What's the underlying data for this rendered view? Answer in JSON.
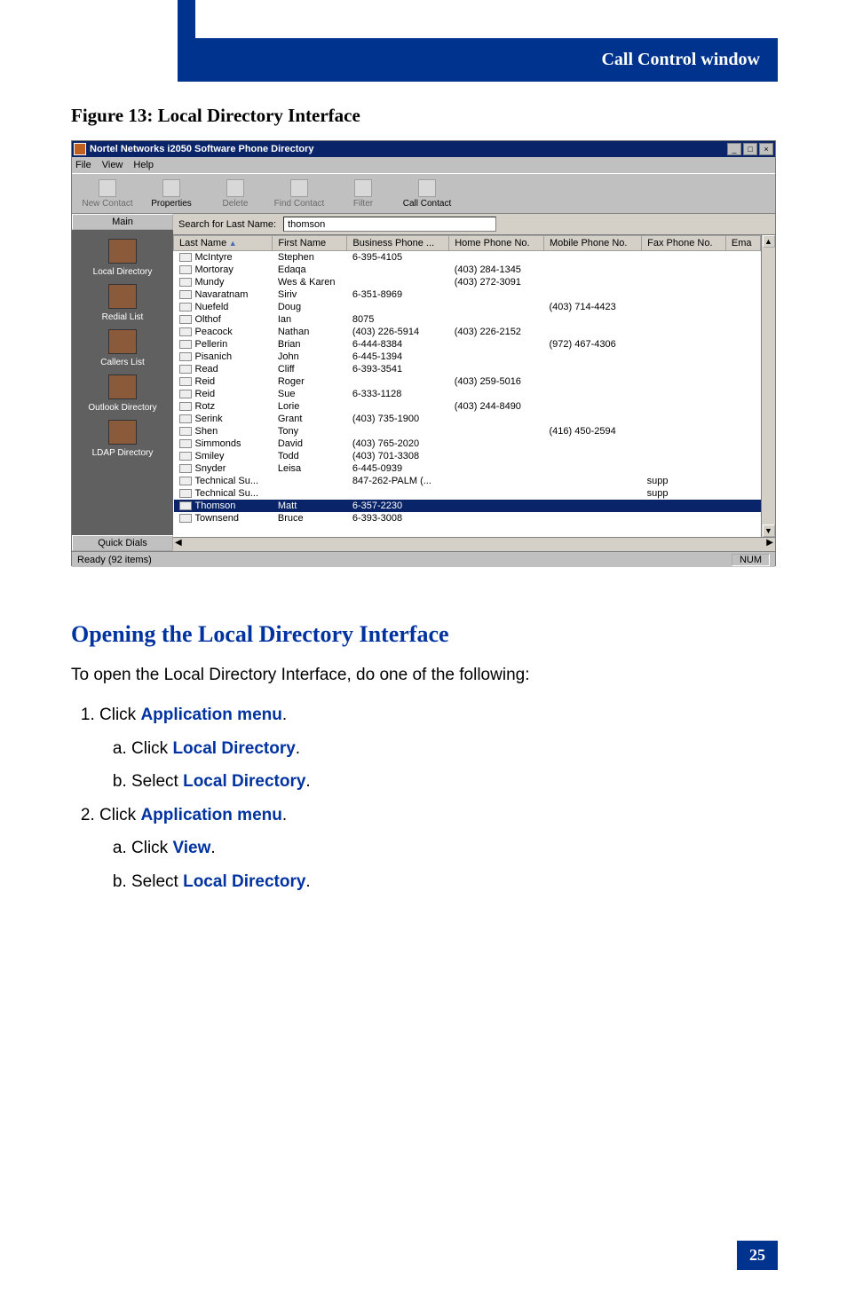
{
  "header": {
    "section_title": "Call Control window"
  },
  "figure": {
    "caption": "Figure 13: Local Directory Interface"
  },
  "window": {
    "title": "Nortel Networks i2050 Software Phone Directory",
    "menus": [
      "File",
      "View",
      "Help"
    ],
    "toolbar": [
      {
        "label": "New Contact",
        "active": false
      },
      {
        "label": "Properties",
        "active": true
      },
      {
        "label": "Delete",
        "active": false
      },
      {
        "label": "Find Contact",
        "active": false
      },
      {
        "label": "Filter",
        "active": false
      },
      {
        "label": "Call Contact",
        "active": true
      }
    ],
    "sidebar_head": "Main",
    "sidebar_items": [
      "Local Directory",
      "Redial List",
      "Callers List",
      "Outlook Directory",
      "LDAP Directory"
    ],
    "sidebar_foot": "Quick Dials",
    "search_label": "Search for Last Name:",
    "search_value": "thomson",
    "columns": [
      "Last Name",
      "First Name",
      "Business Phone ...",
      "Home Phone No.",
      "Mobile Phone No.",
      "Fax Phone No.",
      "Ema"
    ],
    "rows": [
      {
        "last": "McIntyre",
        "first": "Stephen",
        "biz": "6-395-4105",
        "home": "",
        "mob": "",
        "fax": "",
        "sel": false
      },
      {
        "last": "Mortoray",
        "first": "Edaqa",
        "biz": "",
        "home": "(403) 284-1345",
        "mob": "",
        "fax": "",
        "sel": false
      },
      {
        "last": "Mundy",
        "first": "Wes & Karen",
        "biz": "",
        "home": "(403) 272-3091",
        "mob": "",
        "fax": "",
        "sel": false
      },
      {
        "last": "Navaratnam",
        "first": "Siriv",
        "biz": "6-351-8969",
        "home": "",
        "mob": "",
        "fax": "",
        "sel": false
      },
      {
        "last": "Nuefeld",
        "first": "Doug",
        "biz": "",
        "home": "",
        "mob": "(403) 714-4423",
        "fax": "",
        "sel": false
      },
      {
        "last": "Olthof",
        "first": "Ian",
        "biz": "8075",
        "home": "",
        "mob": "",
        "fax": "",
        "sel": false
      },
      {
        "last": "Peacock",
        "first": "Nathan",
        "biz": "(403) 226-5914",
        "home": "(403) 226-2152",
        "mob": "",
        "fax": "",
        "sel": false
      },
      {
        "last": "Pellerin",
        "first": "Brian",
        "biz": "6-444-8384",
        "home": "",
        "mob": "(972) 467-4306",
        "fax": "",
        "sel": false
      },
      {
        "last": "Pisanich",
        "first": "John",
        "biz": "6-445-1394",
        "home": "",
        "mob": "",
        "fax": "",
        "sel": false
      },
      {
        "last": "Read",
        "first": "Cliff",
        "biz": "6-393-3541",
        "home": "",
        "mob": "",
        "fax": "",
        "sel": false
      },
      {
        "last": "Reid",
        "first": "Roger",
        "biz": "",
        "home": "(403) 259-5016",
        "mob": "",
        "fax": "",
        "sel": false
      },
      {
        "last": "Reid",
        "first": "Sue",
        "biz": "6-333-1128",
        "home": "",
        "mob": "",
        "fax": "",
        "sel": false
      },
      {
        "last": "Rotz",
        "first": "Lorie",
        "biz": "",
        "home": "(403) 244-8490",
        "mob": "",
        "fax": "",
        "sel": false
      },
      {
        "last": "Serink",
        "first": "Grant",
        "biz": "(403) 735-1900",
        "home": "",
        "mob": "",
        "fax": "",
        "sel": false
      },
      {
        "last": "Shen",
        "first": "Tony",
        "biz": "",
        "home": "",
        "mob": "(416) 450-2594",
        "fax": "",
        "sel": false
      },
      {
        "last": "Simmonds",
        "first": "David",
        "biz": "(403) 765-2020",
        "home": "",
        "mob": "",
        "fax": "",
        "sel": false
      },
      {
        "last": "Smiley",
        "first": "Todd",
        "biz": "(403) 701-3308",
        "home": "",
        "mob": "",
        "fax": "",
        "sel": false
      },
      {
        "last": "Snyder",
        "first": "Leisa",
        "biz": "6-445-0939",
        "home": "",
        "mob": "",
        "fax": "",
        "sel": false
      },
      {
        "last": "Technical Su...",
        "first": "",
        "biz": "847-262-PALM (...",
        "home": "",
        "mob": "",
        "fax": "supp",
        "sel": false
      },
      {
        "last": "Technical Su...",
        "first": "",
        "biz": "",
        "home": "",
        "mob": "",
        "fax": "supp",
        "sel": false
      },
      {
        "last": "Thomson",
        "first": "Matt",
        "biz": "6-357-2230",
        "home": "",
        "mob": "",
        "fax": "",
        "sel": true
      },
      {
        "last": "Townsend",
        "first": "Bruce",
        "biz": "6-393-3008",
        "home": "",
        "mob": "",
        "fax": "",
        "sel": false
      }
    ],
    "status_left": "Ready (92 items)",
    "status_right": "NUM"
  },
  "section": {
    "heading": "Opening the Local Directory Interface",
    "intro": "To open the Local Directory Interface, do one of the following:",
    "steps": {
      "s1": "Click ",
      "s1_link": "Application menu",
      "s1_tail": ".",
      "s1a": "Click ",
      "s1a_link": "Local Directory",
      "s1a_tail": ".",
      "s1b": "Select ",
      "s1b_link": "Local Directory",
      "s1b_tail": ".",
      "s2": "Click ",
      "s2_link": "Application menu",
      "s2_tail": ".",
      "s2a": "Click ",
      "s2a_link": "View",
      "s2a_tail": ".",
      "s2b": "Select ",
      "s2b_link": "Local Directory",
      "s2b_tail": "."
    }
  },
  "page_number": "25",
  "colors": {
    "brand_blue": "#00338d"
  }
}
